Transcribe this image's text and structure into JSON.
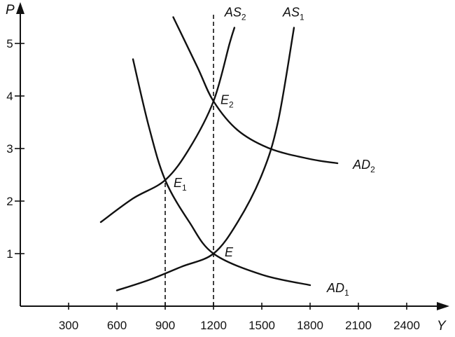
{
  "chart_data": {
    "type": "line",
    "xlabel": "Y",
    "ylabel": "P",
    "xlim": [
      0,
      2700
    ],
    "ylim": [
      0,
      5.6
    ],
    "x_ticks": [
      300,
      600,
      900,
      1200,
      1500,
      1800,
      2100,
      2400
    ],
    "x_tick_labels": [
      "300",
      "600",
      "900",
      "1200",
      "1500",
      "1800",
      "2100",
      "2400"
    ],
    "y_ticks": [
      1,
      2,
      3,
      4,
      5
    ],
    "y_tick_labels": [
      "1",
      "2",
      "3",
      "4",
      "5"
    ],
    "grid": false,
    "series": [
      {
        "name": "AS",
        "sub": "1",
        "points": [
          [
            600,
            0.3
          ],
          [
            800,
            0.5
          ],
          [
            1000,
            0.75
          ],
          [
            1200,
            1.0
          ],
          [
            1350,
            1.6
          ],
          [
            1500,
            2.5
          ],
          [
            1600,
            3.5
          ],
          [
            1700,
            5.3
          ]
        ]
      },
      {
        "name": "AS",
        "sub": "2",
        "points": [
          [
            500,
            1.6
          ],
          [
            700,
            2.05
          ],
          [
            900,
            2.4
          ],
          [
            1050,
            3.0
          ],
          [
            1200,
            3.9
          ],
          [
            1300,
            5.0
          ],
          [
            1330,
            5.3
          ]
        ]
      },
      {
        "name": "AD",
        "sub": "1",
        "points": [
          [
            700,
            4.7
          ],
          [
            800,
            3.4
          ],
          [
            900,
            2.4
          ],
          [
            1050,
            1.6
          ],
          [
            1200,
            1.0
          ],
          [
            1500,
            0.6
          ],
          [
            1800,
            0.4
          ]
        ]
      },
      {
        "name": "AD",
        "sub": "2",
        "points": [
          [
            950,
            5.5
          ],
          [
            1100,
            4.55
          ],
          [
            1200,
            3.9
          ],
          [
            1350,
            3.35
          ],
          [
            1550,
            3.0
          ],
          [
            1800,
            2.8
          ],
          [
            1970,
            2.72
          ]
        ]
      }
    ],
    "guides": [
      {
        "x": 900,
        "y_from": 0,
        "y_to": 2.4
      },
      {
        "x": 1200,
        "y_from": 0,
        "y_to": 5.6
      }
    ],
    "annotations": [
      {
        "text": "E",
        "sub": "",
        "x": 1200,
        "y": 1.0
      },
      {
        "text": "E",
        "sub": "1",
        "x": 900,
        "y": 2.4
      },
      {
        "text": "E",
        "sub": "2",
        "x": 1200,
        "y": 3.9
      }
    ]
  }
}
